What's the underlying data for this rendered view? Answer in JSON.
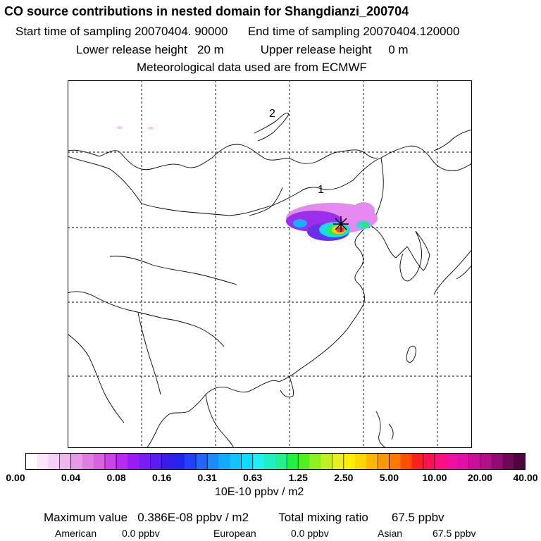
{
  "header": {
    "title": "CO  source contributions in nested domain for Shangdianzi_200704",
    "start_label": "Start time of sampling",
    "start_value": "20070404. 90000",
    "end_label": "End time of sampling",
    "end_value": "20070404.120000",
    "lower_label": "Lower release height",
    "lower_value": "20 m",
    "upper_label": "Upper release height",
    "upper_value": "0 m",
    "met_text": "Meteorological data used are from ECMWF"
  },
  "map": {
    "region_labels": [
      "1",
      "2"
    ],
    "receptor_marker": "star"
  },
  "colorbar": {
    "ticks": [
      "0.00",
      "0.04",
      "0.08",
      "0.16",
      "0.31",
      "0.63",
      "1.25",
      "2.50",
      "5.00",
      "10.00",
      "20.00",
      "40.00"
    ],
    "units": "10E-10 ppbv / m2"
  },
  "footer": {
    "max_label": "Maximum value",
    "max_value": "0.386E-08 ppbv / m2",
    "total_label": "Total mixing ratio",
    "total_value": "67.5 ppbv",
    "american_label": "American",
    "american_value": "0.0 ppbv",
    "european_label": "European",
    "european_value": "0.0 ppbv",
    "asian_label": "Asian",
    "asian_value": "67.5 ppbv"
  }
}
